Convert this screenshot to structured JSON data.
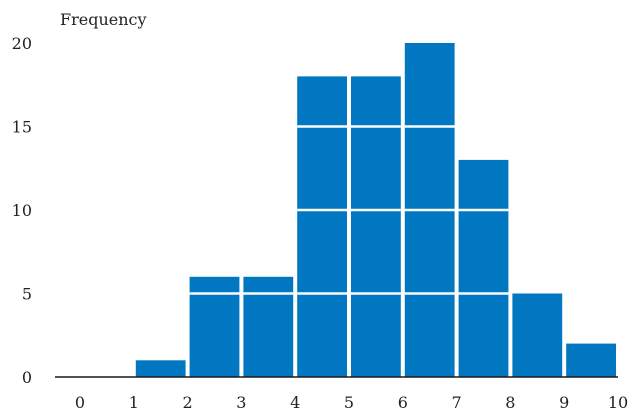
{
  "chart_data": {
    "type": "bar",
    "ylabel": "Frequency",
    "xlabel": "",
    "bins": [
      {
        "start": 0,
        "end": 1,
        "value": 0
      },
      {
        "start": 1,
        "end": 2,
        "value": 1
      },
      {
        "start": 2,
        "end": 3,
        "value": 6
      },
      {
        "start": 3,
        "end": 4,
        "value": 6
      },
      {
        "start": 4,
        "end": 5,
        "value": 18
      },
      {
        "start": 5,
        "end": 6,
        "value": 18
      },
      {
        "start": 6,
        "end": 7,
        "value": 20
      },
      {
        "start": 7,
        "end": 8,
        "value": 13
      },
      {
        "start": 8,
        "end": 9,
        "value": 5
      },
      {
        "start": 9,
        "end": 10,
        "value": 2
      }
    ],
    "xticks": [
      "0",
      "1",
      "2",
      "3",
      "4",
      "5",
      "6",
      "7",
      "8",
      "9",
      "10"
    ],
    "yticks": [
      "0",
      "5",
      "10",
      "15",
      "20"
    ],
    "xlim": [
      0,
      10
    ],
    "ylim": [
      0,
      20
    ],
    "grid": false,
    "bar_color": "#0077c0",
    "divider_color": "#ffffff"
  }
}
